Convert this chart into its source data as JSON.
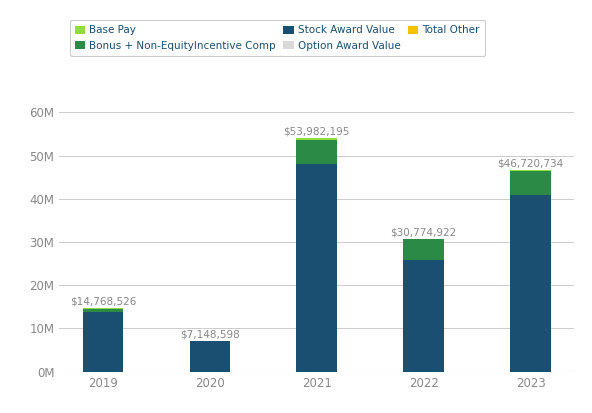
{
  "years": [
    "2019",
    "2020",
    "2021",
    "2022",
    "2023"
  ],
  "stock_award": [
    13900000,
    7000000,
    48000000,
    25900000,
    41000000
  ],
  "bonus": [
    600000,
    100000,
    5700000,
    4700000,
    5500000
  ],
  "base_pay": [
    268526,
    48598,
    282195,
    174922,
    220734
  ],
  "totals_vals": [
    14768526,
    7148598,
    53982195,
    30774922,
    46720734
  ],
  "totals_labels": [
    "$14,768,526",
    "$7,148,598",
    "$53,982,195",
    "$30,774,922",
    "$46,720,734"
  ],
  "colors": {
    "base_pay": "#8fdd3e",
    "bonus": "#2b8a45",
    "stock_award": "#1b4f72",
    "option_award": "#d9d9d9",
    "total_other": "#f5c400"
  },
  "ylim": [
    0,
    65000000
  ],
  "yticks": [
    0,
    10000000,
    20000000,
    30000000,
    40000000,
    50000000,
    60000000
  ],
  "ytick_labels": [
    "0M",
    "10M",
    "20M",
    "30M",
    "40M",
    "50M",
    "60M"
  ],
  "legend_labels_row1": [
    "Base Pay",
    "Bonus + Non-EquityIncentive Comp",
    "Stock Award Value"
  ],
  "legend_labels_row2": [
    "Option Award Value",
    "Total Other"
  ],
  "legend_colors_row1": [
    "#8fdd3e",
    "#2b8a45",
    "#1b4f72"
  ],
  "legend_colors_row2": [
    "#d9d9d9",
    "#f5c400"
  ],
  "background_color": "#ffffff",
  "grid_color": "#cccccc",
  "bar_width": 0.38,
  "label_color": "#888888",
  "tick_color": "#888888"
}
